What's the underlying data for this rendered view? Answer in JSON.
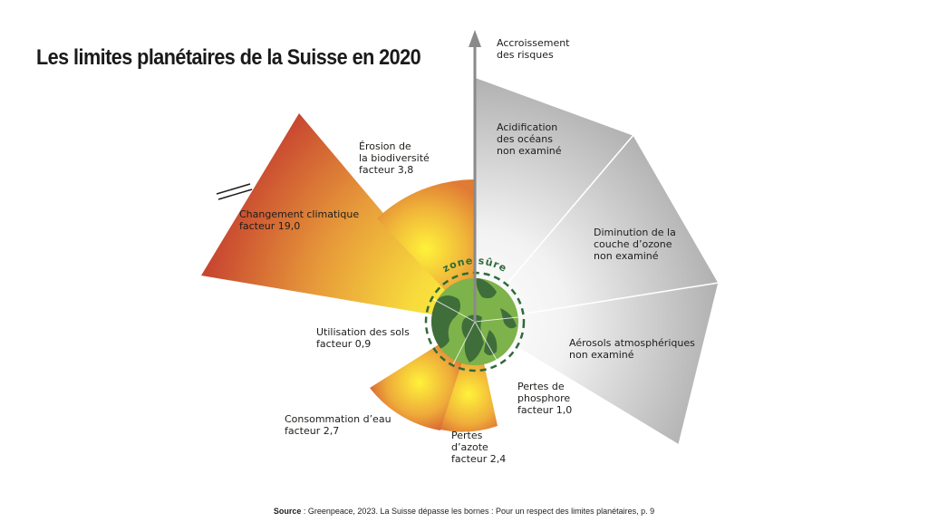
{
  "title": "Les limites planétaires de la Suisse en 2020",
  "axis_label": [
    "Accroissement",
    "des risques"
  ],
  "zone_label": "zone sûre",
  "segments": [
    {
      "id": "climate",
      "lines": [
        "Changement climatique",
        "facteur 19,0"
      ],
      "factor": 19.0,
      "status": "exceeded"
    },
    {
      "id": "biodiv",
      "lines": [
        "Érosion de",
        "la biodiversité",
        "facteur 3,8"
      ],
      "factor": 3.8,
      "status": "exceeded"
    },
    {
      "id": "ocean",
      "lines": [
        "Acidification",
        "des océans",
        "non examiné"
      ],
      "factor": null,
      "status": "not-examined"
    },
    {
      "id": "ozone",
      "lines": [
        "Diminution de la",
        "couche d’ozone",
        "non examiné"
      ],
      "factor": null,
      "status": "not-examined"
    },
    {
      "id": "aerosols",
      "lines": [
        "Aérosols atmosphériques",
        "non examiné"
      ],
      "factor": null,
      "status": "not-examined"
    },
    {
      "id": "phosphorus",
      "lines": [
        "Pertes de",
        "phosphore",
        "facteur 1,0"
      ],
      "factor": 1.0,
      "status": "safe"
    },
    {
      "id": "nitrogen",
      "lines": [
        "Pertes",
        "d’azote",
        "facteur 2,4"
      ],
      "factor": 2.4,
      "status": "exceeded"
    },
    {
      "id": "water",
      "lines": [
        "Consommation d’eau",
        "facteur 2,7"
      ],
      "factor": 2.7,
      "status": "exceeded"
    },
    {
      "id": "land",
      "lines": [
        "Utilisation des sols",
        "facteur 0,9"
      ],
      "factor": 0.9,
      "status": "safe"
    }
  ],
  "source": {
    "label": "Source",
    "text": " : Greenpeace, 2023. La Suisse dépasse les bornes : Pour un respect des limites planétaires, p. 9"
  },
  "colors": {
    "exceeded_inner": "#fbec3a",
    "exceeded_outer": "#cc4b33",
    "not_examined_inner": "#ffffff",
    "not_examined_outer": "#a6a6a6",
    "safe_zone": "#7db34a",
    "safe_zone_border": "#2e6b3a",
    "axis": "#8a8a8a"
  }
}
